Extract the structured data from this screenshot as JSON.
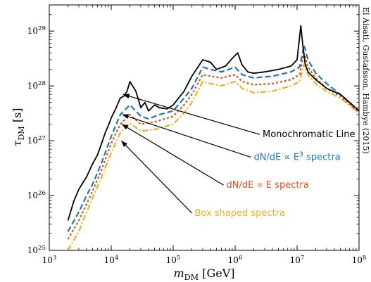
{
  "chart_data": {
    "type": "line",
    "xlabel": "m_DM [GeV]",
    "ylabel": "τ_DM [s]",
    "xscale": "log",
    "yscale": "log",
    "xlim": [
      1000,
      100000000
    ],
    "ylim": [
      1e+25,
      3e+29
    ],
    "grid": false,
    "credit": "El Aisati, Gustafsson, Hambye (2015)",
    "x_ticks": [
      {
        "value": 1000,
        "label": "10^3"
      },
      {
        "value": 10000,
        "label": "10^4"
      },
      {
        "value": 100000,
        "label": "10^5"
      },
      {
        "value": 1000000,
        "label": "10^6"
      },
      {
        "value": 10000000,
        "label": "10^7"
      },
      {
        "value": 100000000,
        "label": "10^8"
      }
    ],
    "y_ticks": [
      {
        "value": 1e+25,
        "label": "10^25"
      },
      {
        "value": 1e+26,
        "label": "10^26"
      },
      {
        "value": 1e+27,
        "label": "10^27"
      },
      {
        "value": 1e+28,
        "label": "10^28"
      },
      {
        "value": 1e+29,
        "label": "10^29"
      }
    ],
    "series": [
      {
        "name": "Monochromatic Line",
        "color": "#000000",
        "dash": "solid",
        "x": [
          2000,
          2500,
          3000,
          4000,
          5000,
          6000,
          7000,
          8000,
          9000,
          10000,
          12000,
          14000,
          16000,
          18000,
          20000,
          25000,
          30000,
          35000,
          40000,
          50000,
          60000,
          80000,
          100000,
          150000,
          200000,
          300000,
          400000,
          500000,
          700000,
          900000,
          1100000,
          1300000,
          1600000,
          2000000,
          3000000,
          5000000,
          8000000,
          10000000,
          11500000,
          12500000,
          13500000,
          15000000,
          20000000,
          30000000,
          50000000,
          70000000,
          100000000
        ],
        "y": [
          3.5e+25,
          8e+25,
          1.3e+26,
          2.2e+26,
          3.8e+26,
          5.5e+26,
          9e+26,
          1.4e+27,
          1.9e+27,
          2.6e+27,
          4e+27,
          6e+27,
          6.5e+27,
          8e+27,
          1.2e+28,
          8e+27,
          4e+27,
          5e+27,
          3.5e+27,
          4.5e+27,
          4e+27,
          3.8e+27,
          4.5e+27,
          8e+27,
          1.5e+28,
          3e+28,
          2.7e+28,
          2e+28,
          2.3e+28,
          3.2e+28,
          4e+28,
          2.4e+28,
          1.8e+28,
          1.7e+28,
          1.8e+28,
          2e+28,
          2.3e+28,
          3e+28,
          1.25e+29,
          5e+28,
          2.5e+28,
          1.8e+28,
          1.3e+28,
          9e+27,
          7e+27,
          5e+27,
          3.5e+27
        ]
      },
      {
        "name": "dN/dE ∝ E^3 spectra",
        "color": "#1f77b4",
        "dash": "8,4",
        "x": [
          2000,
          3000,
          4000,
          5000,
          7000,
          10000,
          14000,
          20000,
          30000,
          40000,
          60000,
          100000,
          150000,
          200000,
          300000,
          400000,
          600000,
          1000000,
          1300000,
          2000000,
          4000000,
          8000000,
          11000000,
          13000000,
          15000000,
          20000000,
          30000000,
          50000000,
          100000000
        ],
        "y": [
          2.2e+25,
          5e+25,
          1e+26,
          1.6e+26,
          4e+26,
          1.2e+27,
          3e+27,
          4.5e+27,
          2.8e+27,
          2.5e+27,
          3e+27,
          3.5e+27,
          6e+27,
          9e+27,
          2.2e+28,
          2e+28,
          1.8e+28,
          2.2e+28,
          1.6e+28,
          1.4e+28,
          1.5e+28,
          1.8e+28,
          2.2e+28,
          5.5e+28,
          3e+28,
          1.7e+28,
          1.1e+28,
          7e+27,
          3.5e+27
        ]
      },
      {
        "name": "dN/dE ∝ E spectra",
        "color": "#d95319",
        "dash": "3,3",
        "x": [
          2000,
          3000,
          4000,
          5000,
          7000,
          10000,
          14000,
          20000,
          30000,
          50000,
          100000,
          150000,
          200000,
          300000,
          400000,
          600000,
          1000000,
          1300000,
          2000000,
          4000000,
          8000000,
          11000000,
          13000000,
          15000000,
          20000000,
          30000000,
          50000000,
          100000000
        ],
        "y": [
          1.6e+25,
          3.5e+25,
          7e+25,
          1.2e+26,
          3e+26,
          9e+26,
          2e+27,
          3e+27,
          2e+27,
          2.2e+27,
          2.8e+27,
          4.5e+27,
          7e+27,
          1.6e+28,
          1.5e+28,
          1.4e+28,
          1.6e+28,
          1.2e+28,
          1.05e+28,
          1.1e+28,
          1.3e+28,
          1.6e+28,
          4e+28,
          2.2e+28,
          1.4e+28,
          9e+27,
          6.5e+27,
          3.3e+27
        ]
      },
      {
        "name": "Box shaped spectra",
        "color": "#edb120",
        "dash": "8,3,2,3",
        "x": [
          2000,
          3000,
          4000,
          5000,
          7000,
          10000,
          14000,
          20000,
          30000,
          50000,
          100000,
          150000,
          200000,
          300000,
          400000,
          600000,
          1000000,
          1300000,
          2000000,
          4000000,
          8000000,
          11000000,
          13000000,
          15000000,
          20000000,
          30000000,
          50000000,
          100000000
        ],
        "y": [
          1e+25,
          2.2e+25,
          5e+25,
          9e+25,
          2.2e+26,
          6e+26,
          1.4e+27,
          2.1e+27,
          1.5e+27,
          1.6e+27,
          2e+27,
          3.2e+27,
          5e+27,
          1.2e+28,
          1.1e+28,
          1e+28,
          1.2e+28,
          9e+27,
          7.5e+27,
          8e+27,
          1e+28,
          1.2e+28,
          2.5e+28,
          1.6e+28,
          1.1e+28,
          8e+27,
          6e+27,
          3.2e+27
        ]
      }
    ],
    "annotations": [
      {
        "text": "Monochromatic Line",
        "color": "#000000",
        "tip": [
          15500,
          7e+27
        ],
        "anchor": [
          2500000,
          1.3e+27
        ]
      },
      {
        "text": "dN/dE ∝ E^3 spectra",
        "color": "#1f77b4",
        "tip": [
          15000,
          3e+27
        ],
        "anchor": [
          1800000,
          5e+26
        ]
      },
      {
        "text": "dN/dE ∝ E spectra",
        "color": "#d95319",
        "tip": [
          14800,
          2e+27
        ],
        "anchor": [
          650000,
          1.55e+26
        ]
      },
      {
        "text": "Box shaped spectra",
        "color": "#edb120",
        "tip": [
          14500,
          1e+27
        ],
        "anchor": [
          200000,
          4.8e+25
        ]
      }
    ]
  }
}
